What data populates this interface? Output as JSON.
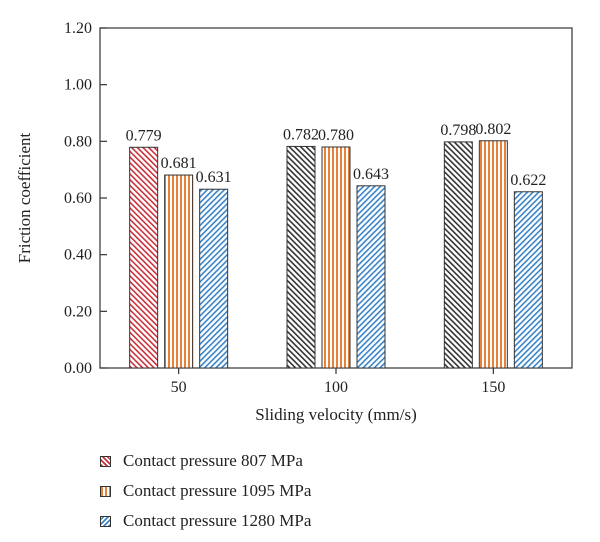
{
  "chart_data": {
    "type": "bar",
    "title": "",
    "xlabel": "Sliding velocity (mm/s)",
    "ylabel": "Friction coefficient",
    "ylim": [
      0,
      1.2
    ],
    "yticks": [
      "0.00",
      "0.20",
      "0.40",
      "0.60",
      "0.80",
      "1.00",
      "1.20"
    ],
    "categories": [
      "50",
      "100",
      "150"
    ],
    "series": [
      {
        "name": "Contact pressure 807 MPa",
        "values": [
          0.779,
          0.782,
          0.798
        ],
        "labels": [
          "0.779",
          "0.782",
          "0.798"
        ],
        "pattern": "diag-left",
        "colors": [
          "#c8323c",
          "#333333",
          "#333333"
        ]
      },
      {
        "name": "Contact pressure 1095 MPa",
        "values": [
          0.681,
          0.78,
          0.802
        ],
        "labels": [
          "0.681",
          "0.780",
          "0.802"
        ],
        "pattern": "vertical",
        "colors": [
          "#e8823a",
          "#e8823a",
          "#e8823a"
        ]
      },
      {
        "name": "Contact pressure 1280 MPa",
        "values": [
          0.631,
          0.643,
          0.622
        ],
        "labels": [
          "0.631",
          "0.643",
          "0.622"
        ],
        "pattern": "diag-right",
        "colors": [
          "#3a84c8",
          "#3a84c8",
          "#3a84c8"
        ]
      }
    ],
    "grid": false,
    "legend": "bottom-left"
  }
}
